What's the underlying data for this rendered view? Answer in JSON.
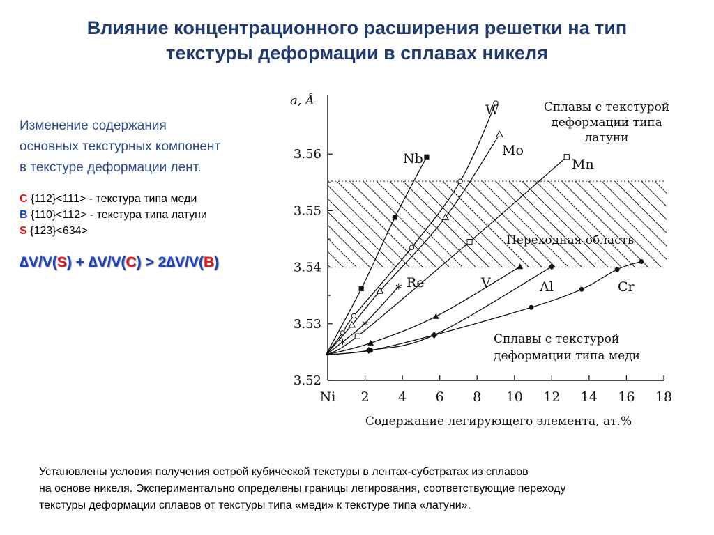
{
  "title": {
    "line1": "Влияние концентрационного расширения решетки на тип",
    "line2": "текстуры деформации в сплавах никеля"
  },
  "intro": [
    "Изменение содержания",
    "основных текстурных компонент",
    "в текстуре деформации лент."
  ],
  "textures": [
    {
      "letter": "C",
      "color": "#e8141c",
      "text": " {112}<111> - текстура типа меди"
    },
    {
      "letter": "B",
      "color": "#1a43c8",
      "text": " {110}<112> - текстура типа латуни"
    },
    {
      "letter": "S",
      "color": "#e8141c",
      "text": " {123}<634>"
    }
  ],
  "formula": {
    "p1": "∆V/V(",
    "s": "S",
    "p2": ") + ∆V/V(",
    "c": "C",
    "p3": ") > 2∆V/V(",
    "b": "B",
    "p4": ")"
  },
  "bottom": [
    "Установлены условия получения острой кубической текстуры в лентах-субстратах из сплавов",
    "на основе никеля.  Экспериментально определены границы легирования, соответствующие переходу",
    " текстуры деформации сплавов от текстуры типа «меди» к текстуре типа «латуни»."
  ],
  "chart_data": {
    "type": "line",
    "title": "",
    "xlabel": "Содержание легирующего элемента, ат.%",
    "ylabel": "a, Å",
    "xlim": [
      0,
      18
    ],
    "ylim": [
      3.52,
      3.57
    ],
    "x_ticks": [
      0,
      2,
      4,
      6,
      8,
      10,
      12,
      14,
      16,
      18
    ],
    "x_tick_labels": [
      "Ni",
      "2",
      "4",
      "6",
      "8",
      "10",
      "12",
      "14",
      "16",
      "18"
    ],
    "y_ticks": [
      3.52,
      3.53,
      3.54,
      3.55,
      3.56
    ],
    "y_tick_labels": [
      "3.52",
      "3.53",
      "3.54",
      "3.55",
      "3.56"
    ],
    "grid": false,
    "transition_region": {
      "y_from": 3.54,
      "y_to": 3.5552,
      "label": "Переходная область"
    },
    "annotations": {
      "brass": [
        "Сплавы с текстурой",
        "деформации типа",
        "латуни"
      ],
      "copper": [
        "Сплавы с текстурой",
        "деформации типа меди"
      ]
    },
    "series": [
      {
        "name": "Nb",
        "marker": "square-filled",
        "points": [
          [
            -0.1,
            3.5245
          ],
          [
            1.8,
            3.5362
          ],
          [
            3.6,
            3.5488
          ],
          [
            5.3,
            3.5595
          ]
        ]
      },
      {
        "name": "W",
        "marker": "circle-open",
        "points": [
          [
            -0.1,
            3.5245
          ],
          [
            0.8,
            3.5284
          ],
          [
            1.4,
            3.5314
          ],
          [
            4.5,
            3.5435
          ],
          [
            7.1,
            3.5552
          ],
          [
            9.0,
            3.569
          ]
        ]
      },
      {
        "name": "Mo",
        "marker": "triangle-open",
        "points": [
          [
            -0.1,
            3.5245
          ],
          [
            1.3,
            3.5298
          ],
          [
            2.8,
            3.5358
          ],
          [
            6.3,
            3.5488
          ],
          [
            9.2,
            3.5635
          ]
        ]
      },
      {
        "name": "Mn",
        "marker": "square-open",
        "points": [
          [
            -0.1,
            3.5245
          ],
          [
            1.6,
            3.5278
          ],
          [
            7.6,
            3.5445
          ],
          [
            12.8,
            3.5595
          ]
        ]
      },
      {
        "name": "Re",
        "marker": "star",
        "points": [
          [
            -0.1,
            3.5245
          ],
          [
            0.8,
            3.5268
          ],
          [
            2.0,
            3.5301
          ],
          [
            3.8,
            3.5366
          ]
        ]
      },
      {
        "name": "V",
        "marker": "triangle-filled",
        "points": [
          [
            -0.1,
            3.5245
          ],
          [
            2.3,
            3.5266
          ],
          [
            5.8,
            3.5313
          ],
          [
            10.3,
            3.5401
          ]
        ]
      },
      {
        "name": "Al",
        "marker": "diamond-filled",
        "points": [
          [
            -0.1,
            3.5245
          ],
          [
            2.2,
            3.5253
          ],
          [
            5.7,
            3.528
          ],
          [
            12.0,
            3.5401
          ]
        ]
      },
      {
        "name": "Cr",
        "marker": "circle-filled",
        "points": [
          [
            -0.1,
            3.5245
          ],
          [
            2.3,
            3.5253
          ],
          [
            5.7,
            3.528
          ],
          [
            10.9,
            3.5329
          ],
          [
            13.6,
            3.5361
          ],
          [
            15.5,
            3.5396
          ],
          [
            16.8,
            3.541
          ]
        ]
      }
    ]
  }
}
